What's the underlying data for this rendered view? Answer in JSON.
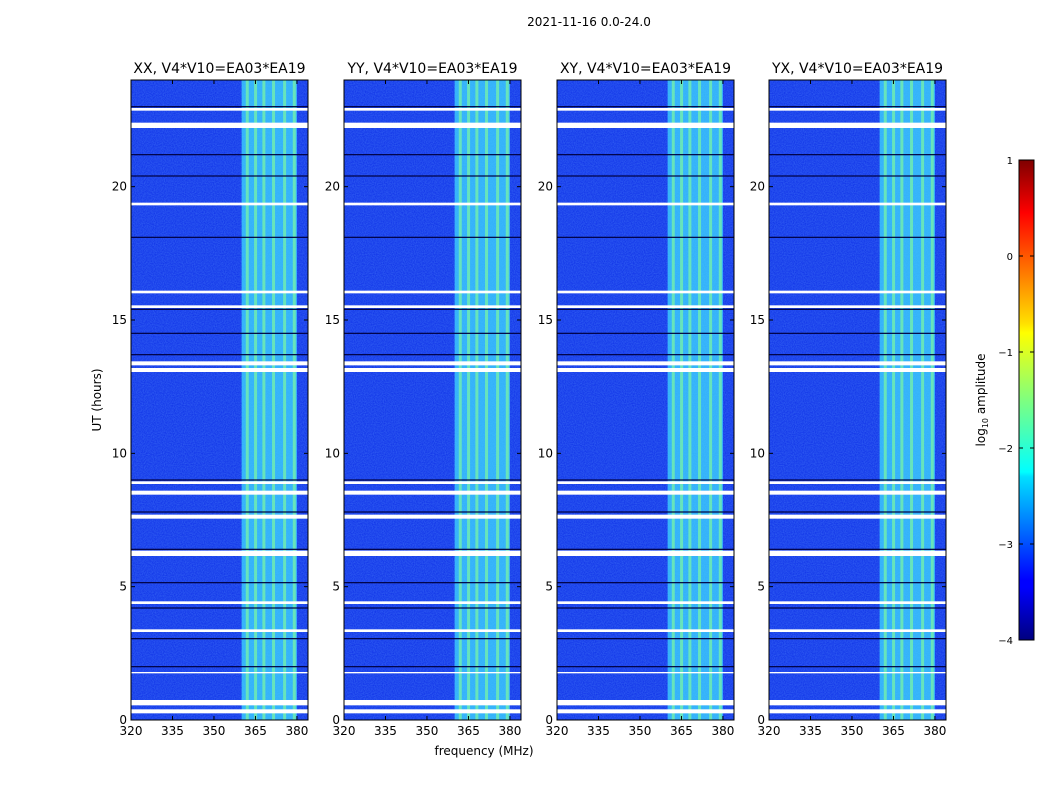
{
  "figure": {
    "suptitle": "2021-11-16 0.0-24.0",
    "xlabel": "frequency (MHz)",
    "ylabel": "UT (hours)",
    "colorbar_label": "log10 amplitude",
    "colorbar_label_base": "log",
    "colorbar_label_sub": "10",
    "colorbar_label_rest": " amplitude"
  },
  "colors": {
    "background_blue": "#0a2be6",
    "flag_white": "#ffffff",
    "band_cyan": "#3fd8ff",
    "band_green": "#7cf8a0"
  },
  "chart_data": {
    "type": "heatmap",
    "panels": [
      "XX, V4*V10=EA03*EA19",
      "YY, V4*V10=EA03*EA19",
      "XY, V4*V10=EA03*EA19",
      "YX, V4*V10=EA03*EA19"
    ],
    "xlim": [
      320,
      384
    ],
    "ylim": [
      0,
      24
    ],
    "xticks": [
      320,
      335,
      350,
      365,
      380
    ],
    "xtick_labels": [
      "320",
      "335",
      "350",
      "365",
      "380"
    ],
    "yticks": [
      0,
      5,
      10,
      15,
      20
    ],
    "ytick_labels": [
      "0",
      "5",
      "10",
      "15",
      "20"
    ],
    "colorbar": {
      "range": [
        -4,
        1
      ],
      "ticks": [
        1,
        0,
        -1,
        -2,
        -3,
        -4
      ],
      "tick_labels": [
        "1",
        "0",
        "−1",
        "−2",
        "−3",
        "−4"
      ],
      "colormap": "jet"
    },
    "bright_band_mhz": [
      360,
      380
    ],
    "flagged_ut_hours": [
      [
        0.25,
        0.4
      ],
      [
        0.55,
        0.75
      ],
      [
        1.75,
        1.8
      ],
      [
        3.3,
        3.4
      ],
      [
        4.35,
        4.45
      ],
      [
        6.15,
        6.35
      ],
      [
        7.55,
        7.7
      ],
      [
        8.45,
        8.6
      ],
      [
        8.85,
        8.95
      ],
      [
        13.05,
        13.2
      ],
      [
        13.3,
        13.45
      ],
      [
        15.45,
        15.55
      ],
      [
        16.0,
        16.1
      ],
      [
        19.3,
        19.4
      ],
      [
        22.2,
        22.4
      ],
      [
        22.85,
        22.95
      ]
    ],
    "dark_ut_lines": [
      2.0,
      3.05,
      4.2,
      5.15,
      6.4,
      7.8,
      9.0,
      13.7,
      14.5,
      15.4,
      18.1,
      20.4,
      21.2,
      22.3,
      23.0
    ]
  }
}
